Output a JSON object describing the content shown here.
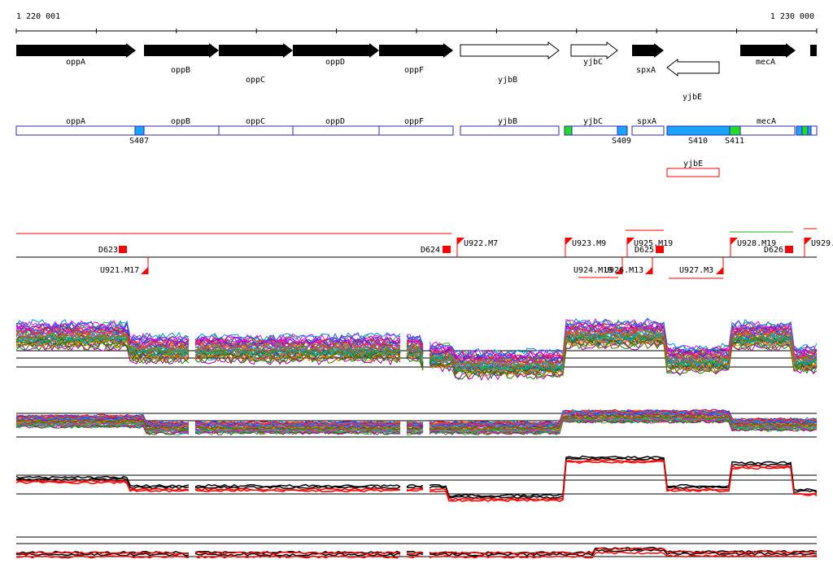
{
  "ruler": {
    "start_label": "1 220 001",
    "end_label": "1 230 000",
    "tick_count": 11
  },
  "colors": {
    "gene_fill": "#000000",
    "segment_border": "#2b2bb0",
    "segment_highlight": "#1aa3ff",
    "segment_green": "#22dd22",
    "marker_red": "#ff0000"
  },
  "genes": [
    {
      "name": "oppA",
      "strand": "+",
      "filled": true
    },
    {
      "name": "oppB",
      "strand": "+",
      "filled": true
    },
    {
      "name": "oppC",
      "strand": "+",
      "filled": true
    },
    {
      "name": "oppD",
      "strand": "+",
      "filled": true
    },
    {
      "name": "oppF",
      "strand": "+",
      "filled": true
    },
    {
      "name": "yjbB",
      "strand": "+",
      "filled": false
    },
    {
      "name": "yjbC",
      "strand": "+",
      "filled": false
    },
    {
      "name": "spxA",
      "strand": "+",
      "filled": true
    },
    {
      "name": "yjbE",
      "strand": "-",
      "filled": false
    },
    {
      "name": "mecA",
      "strand": "+",
      "filled": true
    }
  ],
  "segment_labels": [
    "oppA",
    "oppB",
    "oppC",
    "oppD",
    "oppF",
    "yjbB",
    "yjbC",
    "spxA",
    "mecA"
  ],
  "segment_lower_label": "yjbE",
  "s_markers": [
    "S407",
    "S409",
    "S410",
    "S411"
  ],
  "d_markers": [
    "D623",
    "D624",
    "D625",
    "D626"
  ],
  "u_markers": [
    "U921.M17",
    "U922.M7",
    "U923.M9",
    "U924.M19",
    "U925.M19",
    "U926.M13",
    "U927.M3",
    "U928.M19",
    "U929."
  ]
}
